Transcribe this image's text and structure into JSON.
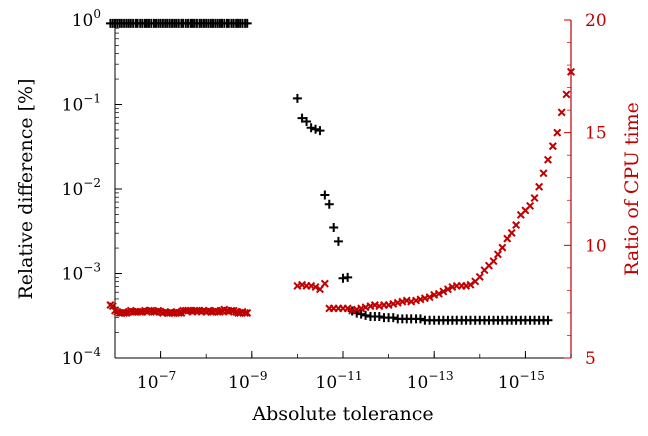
{
  "chart_data": {
    "type": "scatter",
    "title": "",
    "xlabel": "Absolute tolerance",
    "ylabel_left": "Relative difference [%]",
    "ylabel_right": "Ratio of CPU time",
    "x_scale": "log",
    "x_reversed": true,
    "x_range": [
      1e-06,
      1e-16
    ],
    "x_ticks": [
      {
        "value": 1e-07,
        "base": "10",
        "exp": "−7"
      },
      {
        "value": 1e-09,
        "base": "10",
        "exp": "−9"
      },
      {
        "value": 1e-11,
        "base": "10",
        "exp": "−11"
      },
      {
        "value": 1e-13,
        "base": "10",
        "exp": "−13"
      },
      {
        "value": 1e-15,
        "base": "10",
        "exp": "−15"
      }
    ],
    "y_left_scale": "log",
    "y_left_range": [
      0.0001,
      1
    ],
    "y_left_ticks": [
      {
        "value": 1,
        "base": "10",
        "exp": "0"
      },
      {
        "value": 0.1,
        "base": "10",
        "exp": "−1"
      },
      {
        "value": 0.01,
        "base": "10",
        "exp": "−2"
      },
      {
        "value": 0.001,
        "base": "10",
        "exp": "−3"
      },
      {
        "value": 0.0001,
        "base": "10",
        "exp": "−4"
      }
    ],
    "y_right_range": [
      5,
      20
    ],
    "y_right_ticks": [
      "5",
      "10",
      "15",
      "20"
    ],
    "grid": false,
    "right_axis_color": "#c00000",
    "series": [
      {
        "marker": "plus",
        "color": "#000000",
        "axis": "left",
        "points": [
          [
            1.26e-06,
            0.912
          ],
          [
            1.12e-06,
            0.912
          ],
          [
            1e-06,
            0.912
          ],
          [
            8.9e-07,
            0.912
          ],
          [
            7.9e-07,
            0.912
          ],
          [
            7.1e-07,
            0.912
          ],
          [
            6.3e-07,
            0.912
          ],
          [
            5.6e-07,
            0.912
          ],
          [
            5e-07,
            0.912
          ],
          [
            4.5e-07,
            0.912
          ],
          [
            4e-07,
            0.912
          ],
          [
            3.5e-07,
            0.912
          ],
          [
            3.2e-07,
            0.912
          ],
          [
            2.8e-07,
            0.912
          ],
          [
            2.5e-07,
            0.912
          ],
          [
            2.2e-07,
            0.912
          ],
          [
            2e-07,
            0.912
          ],
          [
            1.8e-07,
            0.912
          ],
          [
            1.6e-07,
            0.912
          ],
          [
            1.4e-07,
            0.912
          ],
          [
            1.26e-07,
            0.912
          ],
          [
            1.12e-07,
            0.912
          ],
          [
            1e-07,
            0.912
          ],
          [
            8.9e-08,
            0.912
          ],
          [
            7.9e-08,
            0.912
          ],
          [
            7.1e-08,
            0.912
          ],
          [
            6.3e-08,
            0.912
          ],
          [
            5.6e-08,
            0.912
          ],
          [
            5e-08,
            0.912
          ],
          [
            4.5e-08,
            0.912
          ],
          [
            4e-08,
            0.912
          ],
          [
            3.5e-08,
            0.912
          ],
          [
            3.2e-08,
            0.912
          ],
          [
            2.8e-08,
            0.912
          ],
          [
            2.5e-08,
            0.912
          ],
          [
            2.2e-08,
            0.912
          ],
          [
            2e-08,
            0.912
          ],
          [
            1.8e-08,
            0.912
          ],
          [
            1.6e-08,
            0.912
          ],
          [
            1.4e-08,
            0.912
          ],
          [
            1.26e-08,
            0.912
          ],
          [
            1.12e-08,
            0.912
          ],
          [
            1e-08,
            0.912
          ],
          [
            8.9e-09,
            0.912
          ],
          [
            7.9e-09,
            0.912
          ],
          [
            7.1e-09,
            0.912
          ],
          [
            6.3e-09,
            0.912
          ],
          [
            5.6e-09,
            0.912
          ],
          [
            5e-09,
            0.912
          ],
          [
            4.5e-09,
            0.912
          ],
          [
            4e-09,
            0.912
          ],
          [
            3.5e-09,
            0.912
          ],
          [
            3.2e-09,
            0.912
          ],
          [
            2.8e-09,
            0.912
          ],
          [
            2.5e-09,
            0.912
          ],
          [
            2.2e-09,
            0.912
          ],
          [
            2e-09,
            0.912
          ],
          [
            1.8e-09,
            0.912
          ],
          [
            1.6e-09,
            0.912
          ],
          [
            1.4e-09,
            0.912
          ],
          [
            1.26e-09,
            0.912
          ],
          [
            1e-10,
            0.118
          ],
          [
            7.9e-11,
            0.069
          ],
          [
            6.3e-11,
            0.063
          ],
          [
            5e-11,
            0.053
          ],
          [
            4e-11,
            0.051
          ],
          [
            3.2e-11,
            0.049
          ],
          [
            2.5e-11,
            0.0085
          ],
          [
            2e-11,
            0.0066
          ],
          [
            1.6e-11,
            0.0035
          ],
          [
            1.26e-11,
            0.0024
          ],
          [
            1e-11,
            0.00088
          ],
          [
            7.9e-12,
            0.0009
          ],
          [
            6.3e-12,
            0.00036
          ],
          [
            5e-12,
            0.00034
          ],
          [
            4e-12,
            0.00033
          ],
          [
            3.2e-12,
            0.00032
          ],
          [
            2.5e-12,
            0.00031
          ],
          [
            2e-12,
            0.00031
          ],
          [
            1.6e-12,
            0.00031
          ],
          [
            1.26e-12,
            0.0003
          ],
          [
            1e-12,
            0.0003
          ],
          [
            7.9e-13,
            0.0003
          ],
          [
            6.3e-13,
            0.00029
          ],
          [
            5e-13,
            0.00029
          ],
          [
            4e-13,
            0.00029
          ],
          [
            3.2e-13,
            0.00029
          ],
          [
            2.5e-13,
            0.00029
          ],
          [
            2e-13,
            0.00029
          ],
          [
            1.6e-13,
            0.00028
          ],
          [
            1.26e-13,
            0.00028
          ],
          [
            1e-13,
            0.00028
          ],
          [
            7.9e-14,
            0.00028
          ],
          [
            6.3e-14,
            0.00028
          ],
          [
            5e-14,
            0.00028
          ],
          [
            4e-14,
            0.00028
          ],
          [
            3.2e-14,
            0.00028
          ],
          [
            2.5e-14,
            0.00028
          ],
          [
            2e-14,
            0.00028
          ],
          [
            1.6e-14,
            0.00028
          ],
          [
            1.26e-14,
            0.00028
          ],
          [
            1e-14,
            0.00028
          ],
          [
            7.9e-15,
            0.00028
          ],
          [
            6.3e-15,
            0.00028
          ],
          [
            5e-15,
            0.00028
          ],
          [
            4e-15,
            0.00028
          ],
          [
            3.2e-15,
            0.00028
          ],
          [
            2.5e-15,
            0.00028
          ],
          [
            2e-15,
            0.00028
          ],
          [
            1.6e-15,
            0.00028
          ],
          [
            1.26e-15,
            0.00028
          ],
          [
            1e-15,
            0.00028
          ],
          [
            7.9e-16,
            0.00028
          ],
          [
            6.3e-16,
            0.00028
          ],
          [
            5e-16,
            0.00028
          ],
          [
            4e-16,
            0.00028
          ],
          [
            3.2e-16,
            0.00028
          ]
        ]
      },
      {
        "marker": "x",
        "color": "#c00000",
        "axis": "right",
        "points": [
          [
            1.26e-06,
            7.35
          ],
          [
            1.12e-06,
            7.3
          ],
          [
            1e-06,
            7.1
          ],
          [
            8.9e-07,
            7.05
          ],
          [
            7.9e-07,
            7.0
          ],
          [
            7.1e-07,
            7.0
          ],
          [
            6.3e-07,
            7.0
          ],
          [
            5.6e-07,
            7.0
          ],
          [
            5e-07,
            7.05
          ],
          [
            4.5e-07,
            7.1
          ],
          [
            4e-07,
            7.05
          ],
          [
            3.5e-07,
            7.05
          ],
          [
            3.2e-07,
            7.05
          ],
          [
            2.8e-07,
            7.05
          ],
          [
            2.5e-07,
            7.05
          ],
          [
            2.2e-07,
            7.1
          ],
          [
            2e-07,
            7.05
          ],
          [
            1.8e-07,
            7.1
          ],
          [
            1.6e-07,
            7.1
          ],
          [
            1.4e-07,
            7.05
          ],
          [
            1.26e-07,
            7.05
          ],
          [
            1.12e-07,
            7.1
          ],
          [
            1e-07,
            7.05
          ],
          [
            8.9e-08,
            7.0
          ],
          [
            7.9e-08,
            7.05
          ],
          [
            7.1e-08,
            7.0
          ],
          [
            6.3e-08,
            7.0
          ],
          [
            5.6e-08,
            7.0
          ],
          [
            5e-08,
            7.0
          ],
          [
            4.5e-08,
            7.05
          ],
          [
            4e-08,
            7.0
          ],
          [
            3.5e-08,
            7.0
          ],
          [
            3.2e-08,
            7.1
          ],
          [
            2.8e-08,
            7.1
          ],
          [
            2.5e-08,
            7.1
          ],
          [
            2.2e-08,
            7.1
          ],
          [
            2e-08,
            7.05
          ],
          [
            1.8e-08,
            7.1
          ],
          [
            1.6e-08,
            7.1
          ],
          [
            1.4e-08,
            7.1
          ],
          [
            1.26e-08,
            7.05
          ],
          [
            1.12e-08,
            7.1
          ],
          [
            1e-08,
            7.05
          ],
          [
            8.9e-09,
            7.1
          ],
          [
            7.9e-09,
            7.05
          ],
          [
            7.1e-09,
            7.05
          ],
          [
            6.3e-09,
            7.1
          ],
          [
            5.6e-09,
            7.05
          ],
          [
            5e-09,
            7.05
          ],
          [
            4.5e-09,
            7.1
          ],
          [
            4e-09,
            7.15
          ],
          [
            3.5e-09,
            7.1
          ],
          [
            3.2e-09,
            7.05
          ],
          [
            2.8e-09,
            7.1
          ],
          [
            2.5e-09,
            7.1
          ],
          [
            2.2e-09,
            7.05
          ],
          [
            2e-09,
            7.0
          ],
          [
            1.8e-09,
            7.0
          ],
          [
            1.6e-09,
            7.05
          ],
          [
            1.4e-09,
            7.0
          ],
          [
            1.26e-09,
            7.0
          ],
          [
            1e-10,
            8.2
          ],
          [
            7.9e-11,
            8.25
          ],
          [
            6.3e-11,
            8.2
          ],
          [
            5e-11,
            8.2
          ],
          [
            4e-11,
            8.15
          ],
          [
            3.2e-11,
            8.05
          ],
          [
            2.5e-11,
            8.3
          ],
          [
            2e-11,
            7.2
          ],
          [
            1.6e-11,
            7.2
          ],
          [
            1.26e-11,
            7.2
          ],
          [
            1e-11,
            7.2
          ],
          [
            7.9e-12,
            7.2
          ],
          [
            6.3e-12,
            7.1
          ],
          [
            5e-12,
            7.15
          ],
          [
            4e-12,
            7.2
          ],
          [
            3.2e-12,
            7.25
          ],
          [
            2.5e-12,
            7.3
          ],
          [
            2e-12,
            7.35
          ],
          [
            1.6e-12,
            7.3
          ],
          [
            1.26e-12,
            7.35
          ],
          [
            1e-12,
            7.35
          ],
          [
            7.9e-13,
            7.4
          ],
          [
            6.3e-13,
            7.45
          ],
          [
            5e-13,
            7.5
          ],
          [
            4e-13,
            7.55
          ],
          [
            3.2e-13,
            7.5
          ],
          [
            2.5e-13,
            7.55
          ],
          [
            2e-13,
            7.6
          ],
          [
            1.6e-13,
            7.65
          ],
          [
            1.26e-13,
            7.7
          ],
          [
            1e-13,
            7.8
          ],
          [
            7.9e-14,
            7.85
          ],
          [
            6.3e-14,
            7.95
          ],
          [
            5e-14,
            8.05
          ],
          [
            4e-14,
            8.15
          ],
          [
            3.2e-14,
            8.2
          ],
          [
            2.5e-14,
            8.2
          ],
          [
            2e-14,
            8.2
          ],
          [
            1.6e-14,
            8.25
          ],
          [
            1.26e-14,
            8.4
          ],
          [
            1e-14,
            8.6
          ],
          [
            7.9e-15,
            8.9
          ],
          [
            6.3e-15,
            9.1
          ],
          [
            5e-15,
            9.3
          ],
          [
            4e-15,
            9.6
          ],
          [
            3.2e-15,
            9.9
          ],
          [
            2.5e-15,
            10.3
          ],
          [
            2e-15,
            10.55
          ],
          [
            1.6e-15,
            10.9
          ],
          [
            1.26e-15,
            11.35
          ],
          [
            1e-15,
            11.55
          ],
          [
            7.9e-16,
            11.75
          ],
          [
            6.3e-16,
            12.1
          ],
          [
            5e-16,
            12.6
          ],
          [
            4e-16,
            13.2
          ],
          [
            3.2e-16,
            13.8
          ],
          [
            2.5e-16,
            14.4
          ],
          [
            2e-16,
            15.0
          ],
          [
            1.6e-16,
            15.9
          ],
          [
            1.26e-16,
            16.7
          ],
          [
            1e-16,
            17.7
          ]
        ]
      }
    ]
  }
}
